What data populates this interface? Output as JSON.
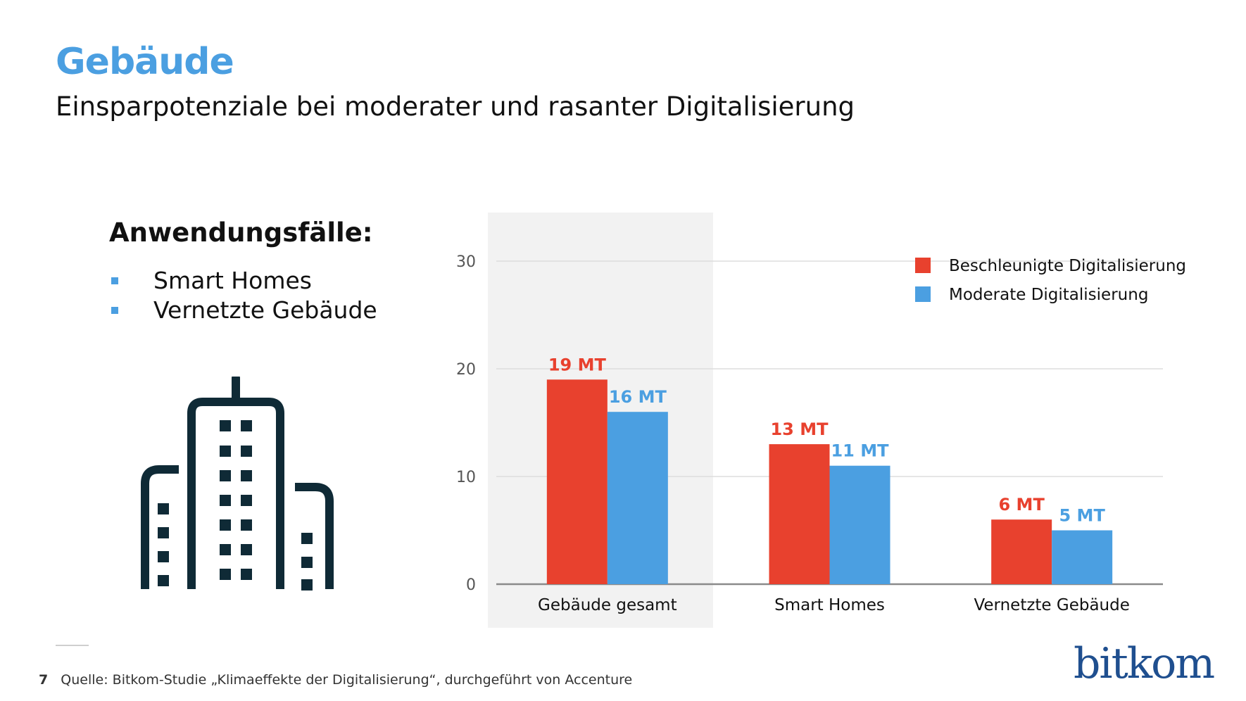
{
  "slide": {
    "title": "Gebäude",
    "subtitle": "Einsparpotenziale bei moderater und rasanter Digitalisierung",
    "page_number": "7",
    "source": "Quelle: Bitkom-Studie „Klimaeffekte der Digitalisierung“, durchgeführt von Accenture",
    "logo": "bitkom",
    "building_icon": "building-icon"
  },
  "use_cases": {
    "heading": "Anwendungsfälle:",
    "items": [
      "Smart Homes",
      "Vernetzte Gebäude"
    ]
  },
  "colors": {
    "title_blue": "#4b9fe1",
    "bullet_blue": "#4b9fe1",
    "accelerated": "#e8412e",
    "moderate": "#4b9fe1",
    "icon_dark": "#0f2a36",
    "highlight_bg": "#f2f2f2",
    "grid": "#dddddd",
    "logo": "#1f4f8f"
  },
  "chart_data": {
    "type": "bar",
    "categories": [
      "Gebäude gesamt",
      "Smart Homes",
      "Vernetzte Gebäude"
    ],
    "series": [
      {
        "name": "Beschleunigte Digitalisierung",
        "values": [
          19,
          13,
          6
        ],
        "labels": [
          "19 MT",
          "13 MT",
          "6 MT"
        ],
        "color": "#e8412e"
      },
      {
        "name": "Moderate Digitalisierung",
        "values": [
          16,
          11,
          5
        ],
        "labels": [
          "16 MT",
          "11 MT",
          "5 MT"
        ],
        "color": "#4b9fe1"
      }
    ],
    "ylim": [
      0,
      30
    ],
    "yticks": [
      0,
      10,
      20,
      30
    ],
    "grid": true,
    "legend": "top-right",
    "highlighted_category": "Gebäude gesamt"
  }
}
